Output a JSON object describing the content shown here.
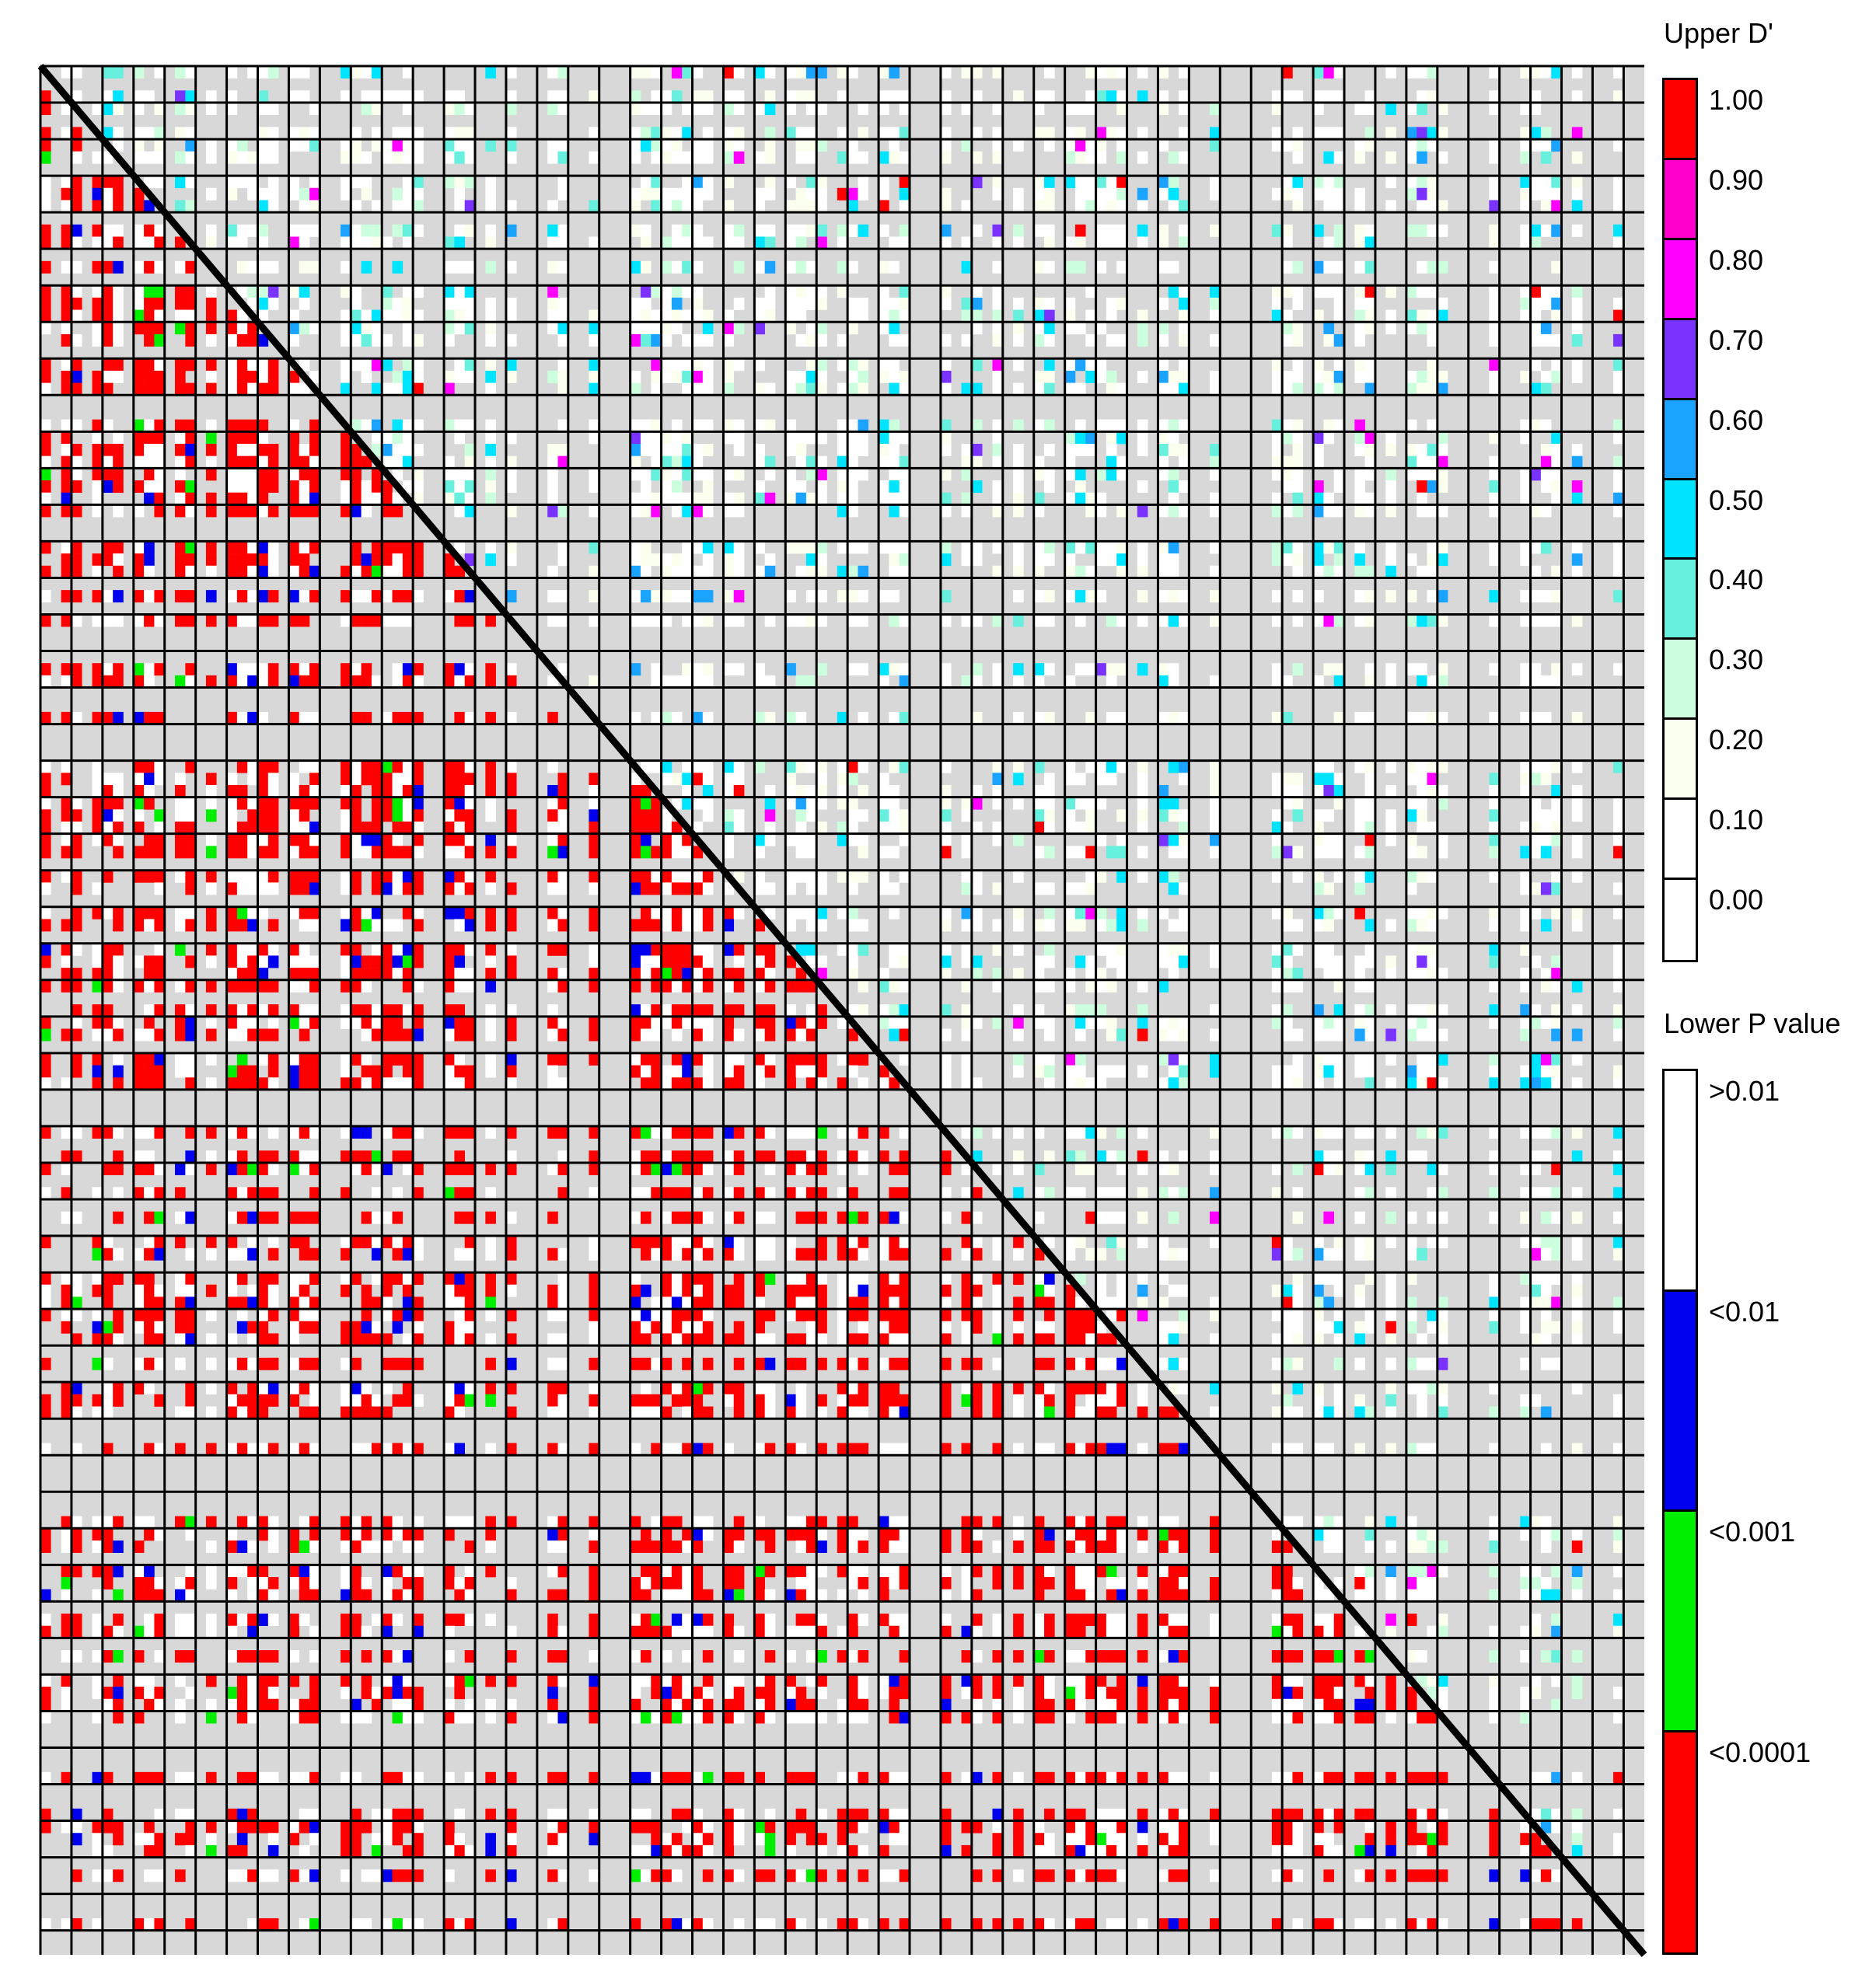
{
  "chart_data": {
    "type": "heatmap",
    "title": "",
    "xlabel": "",
    "ylabel": "",
    "matrix_size": 155,
    "diagonal_color": "#000000",
    "background_color": "#d8d8d8",
    "grid_color": "#000000",
    "upper_triangle": {
      "legend_title": "Upper D'",
      "scale": [
        {
          "label": "1.00",
          "color": "#ff0000"
        },
        {
          "label": "0.90",
          "color": "#ff00cc"
        },
        {
          "label": "0.80",
          "color": "#ff00ff"
        },
        {
          "label": "0.70",
          "color": "#7a33ff"
        },
        {
          "label": "0.60",
          "color": "#1aa3ff"
        },
        {
          "label": "0.50",
          "color": "#00e5ff"
        },
        {
          "label": "0.40",
          "color": "#66f0dd"
        },
        {
          "label": "0.30",
          "color": "#ccffdd"
        },
        {
          "label": "0.20",
          "color": "#fbffee"
        },
        {
          "label": "0.10",
          "color": "#ffffff"
        },
        {
          "label": "0.00",
          "color": "#ffffff"
        }
      ]
    },
    "lower_triangle": {
      "legend_title": "Lower P value",
      "scale": [
        {
          "label": ">0.01",
          "color": "#ffffff"
        },
        {
          "label": "<0.01",
          "color": "#0000ee"
        },
        {
          "label": "<0.001",
          "color": "#00ee00"
        },
        {
          "label": "<0.0001",
          "color": "#ff0000"
        }
      ]
    },
    "legend_placement": "right"
  }
}
